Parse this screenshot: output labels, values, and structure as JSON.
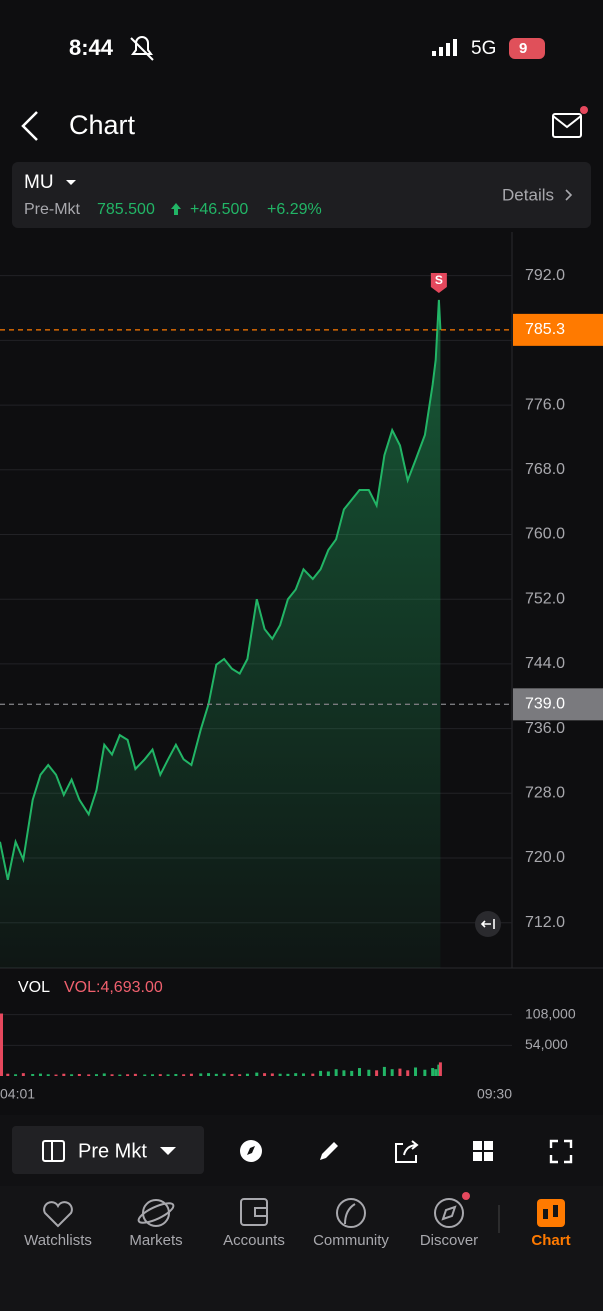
{
  "status_bar": {
    "time": "8:44",
    "network": "5G",
    "battery": "9"
  },
  "header": {
    "title": "Chart"
  },
  "quote": {
    "symbol": "MU",
    "session": "Pre-Mkt",
    "price": "785.500",
    "change": "+46.500",
    "change_pct": "+6.29%",
    "details": "Details"
  },
  "chart_data": [
    {
      "type": "line",
      "color": "#22b566",
      "x": [
        0,
        5,
        10,
        15,
        21,
        26,
        31,
        36,
        41,
        46,
        51,
        57,
        62,
        67,
        72,
        77,
        82,
        87,
        93,
        98,
        103,
        108,
        113,
        118,
        123,
        129,
        134,
        139,
        144,
        149,
        154,
        159,
        165,
        170,
        175,
        180,
        185,
        190,
        195,
        201,
        206,
        211,
        216,
        221,
        226,
        231,
        237,
        242,
        247,
        252,
        257,
        262,
        267,
        273,
        278,
        280,
        282,
        283
      ],
      "values": [
        722,
        717.3,
        722,
        719.8,
        727.2,
        730.3,
        731.5,
        730.3,
        727.8,
        729.7,
        727.2,
        725.4,
        728.4,
        734,
        732.8,
        735.2,
        734.6,
        731,
        732.2,
        733.4,
        730.3,
        732.2,
        734,
        732.2,
        731.5,
        735.9,
        739,
        743.9,
        744.6,
        743.4,
        742.8,
        744.6,
        752,
        748.3,
        747.1,
        748.8,
        752,
        753.2,
        755.7,
        754.5,
        755.7,
        758.1,
        759.4,
        763.1,
        764.3,
        765.5,
        765.5,
        763.6,
        769.8,
        772.9,
        771,
        766.7,
        769.2,
        772.3,
        778.5,
        781.6,
        789,
        785.3
      ],
      "xlim": [
        0,
        329
      ],
      "ylim": [
        706.4,
        797.4
      ],
      "yticks": [
        {
          "value": 712,
          "label": "712.0"
        },
        {
          "value": 720,
          "label": "720.0"
        },
        {
          "value": 728,
          "label": "728.0"
        },
        {
          "value": 736,
          "label": "736.0"
        },
        {
          "value": 744,
          "label": "744.0"
        },
        {
          "value": 752,
          "label": "752.0"
        },
        {
          "value": 760,
          "label": "760.0"
        },
        {
          "value": 768,
          "label": "768.0"
        },
        {
          "value": 776,
          "label": "776.0"
        },
        {
          "value": 784,
          "label": "784.0"
        },
        {
          "value": 792,
          "label": "792.0"
        }
      ],
      "grid": true,
      "reference_lines": [
        {
          "value": 785.3,
          "color": "#ff7a00"
        },
        {
          "value": 739,
          "label": "739.0",
          "color": "#7a7a7e"
        }
      ],
      "marker": {
        "label": "S"
      }
    },
    {
      "type": "bar",
      "title": "VOL",
      "annotation": "VOL:4,693.00",
      "up_color": "#22b566",
      "down_color": "#e5485d",
      "x": [
        0,
        5,
        10,
        15,
        21,
        26,
        31,
        36,
        41,
        46,
        51,
        57,
        62,
        67,
        72,
        77,
        82,
        87,
        93,
        98,
        103,
        108,
        113,
        118,
        123,
        129,
        134,
        139,
        144,
        149,
        154,
        159,
        165,
        170,
        175,
        180,
        185,
        190,
        195,
        201,
        206,
        211,
        216,
        221,
        226,
        231,
        237,
        242,
        247,
        252,
        257,
        262,
        267,
        273,
        278,
        280,
        282,
        283
      ],
      "values": [
        110000,
        4000,
        3000,
        5000,
        3500,
        4200,
        3000,
        2500,
        4000,
        3000,
        3500,
        2800,
        3200,
        4500,
        3000,
        2500,
        3000,
        3800,
        2600,
        3000,
        3200,
        2800,
        3500,
        3000,
        4000,
        4500,
        5000,
        3800,
        4200,
        3500,
        3000,
        4000,
        6000,
        5000,
        4500,
        4000,
        3800,
        5000,
        4500,
        4200,
        9000,
        8000,
        12000,
        10000,
        9000,
        14000,
        11000,
        10000,
        16000,
        12000,
        13000,
        10000,
        15000,
        11000,
        14000,
        12000,
        20000,
        24000
      ],
      "xlim": [
        0,
        329
      ],
      "ylim": [
        0,
        125000
      ],
      "yticks": [
        {
          "value": 54000,
          "label": "54,000"
        },
        {
          "value": 108000,
          "label": "108,000"
        }
      ],
      "xticks": [
        {
          "value": 0,
          "label": "04:01"
        },
        {
          "value": 329,
          "label": "09:30"
        }
      ]
    }
  ],
  "toolbar": {
    "session_button": "Pre Mkt"
  },
  "nav": [
    {
      "label": "Watchlists"
    },
    {
      "label": "Markets"
    },
    {
      "label": "Accounts"
    },
    {
      "label": "Community"
    },
    {
      "label": "Discover"
    },
    {
      "label": "Chart"
    }
  ]
}
